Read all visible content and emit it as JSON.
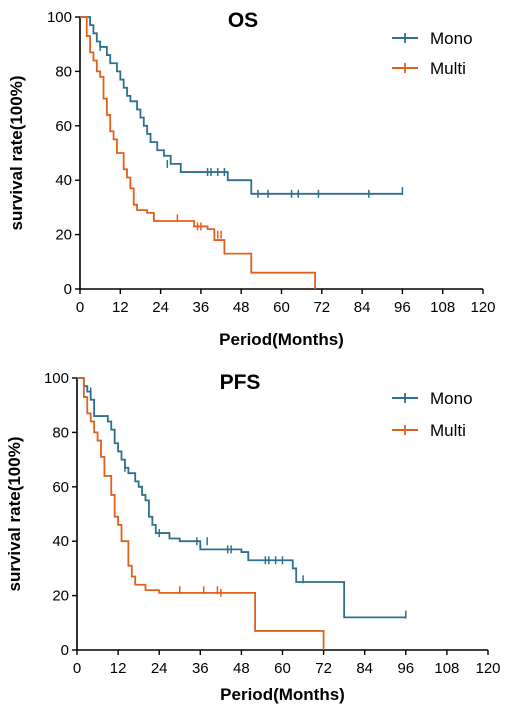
{
  "chart_data": [
    {
      "type": "line",
      "title": "OS",
      "xlabel": "Period(Months)",
      "ylabel": "survival rate(100%)",
      "xlim": [
        0,
        120
      ],
      "ylim": [
        0,
        100
      ],
      "xticks": [
        0,
        12,
        24,
        36,
        48,
        60,
        72,
        84,
        96,
        108,
        120
      ],
      "yticks": [
        0,
        20,
        40,
        60,
        80,
        100
      ],
      "x_tick_labels": [
        "0",
        "12",
        "24",
        "36",
        "48",
        "60",
        "72",
        "84",
        "96",
        "108",
        "120"
      ],
      "y_tick_labels": [
        "0",
        "20",
        "40",
        "60",
        "80",
        "100"
      ],
      "grid": false,
      "legend": "top-right",
      "series": [
        {
          "name": "Mono",
          "color": "#2e6e8e",
          "steps": [
            [
              0,
              100
            ],
            [
              3,
              97
            ],
            [
              4,
              94
            ],
            [
              5,
              91
            ],
            [
              6,
              89
            ],
            [
              8,
              86
            ],
            [
              9,
              83
            ],
            [
              11,
              80
            ],
            [
              12,
              77
            ],
            [
              13,
              74
            ],
            [
              14,
              71
            ],
            [
              15,
              69
            ],
            [
              17,
              66
            ],
            [
              18,
              63
            ],
            [
              19,
              60
            ],
            [
              20,
              57
            ],
            [
              21,
              54
            ],
            [
              23,
              51
            ],
            [
              25,
              49
            ],
            [
              27,
              46
            ],
            [
              30,
              43
            ],
            [
              44,
              40
            ],
            [
              51,
              35
            ],
            [
              96,
              35
            ]
          ],
          "censored": [
            [
              6,
              89
            ],
            [
              26,
              46
            ],
            [
              38,
              43
            ],
            [
              39,
              43
            ],
            [
              41,
              43
            ],
            [
              43,
              43
            ],
            [
              53,
              35
            ],
            [
              56,
              35
            ],
            [
              63,
              35
            ],
            [
              65,
              35
            ],
            [
              71,
              35
            ],
            [
              86,
              35
            ],
            [
              96,
              36
            ]
          ]
        },
        {
          "name": "Multi",
          "color": "#e0601e",
          "steps": [
            [
              0,
              100
            ],
            [
              2,
              93
            ],
            [
              3,
              87
            ],
            [
              4,
              84
            ],
            [
              5,
              80
            ],
            [
              6,
              78
            ],
            [
              7,
              70
            ],
            [
              8,
              64
            ],
            [
              9,
              58
            ],
            [
              10,
              55
            ],
            [
              11,
              50
            ],
            [
              13,
              44
            ],
            [
              14,
              41
            ],
            [
              15,
              37
            ],
            [
              16,
              31
            ],
            [
              17,
              29
            ],
            [
              20,
              28
            ],
            [
              22,
              25
            ],
            [
              34,
              23
            ],
            [
              38,
              22
            ],
            [
              40,
              18
            ],
            [
              43,
              13
            ],
            [
              51,
              6
            ],
            [
              70,
              0
            ]
          ],
          "censored": [
            [
              29,
              26
            ],
            [
              35,
              23
            ],
            [
              36,
              23
            ],
            [
              40,
              20
            ],
            [
              41,
              20
            ],
            [
              42,
              20
            ]
          ]
        }
      ]
    },
    {
      "type": "line",
      "title": "PFS",
      "xlabel": "Period(Months)",
      "ylabel": "survival rate(100%)",
      "xlim": [
        0,
        120
      ],
      "ylim": [
        0,
        100
      ],
      "xticks": [
        0,
        12,
        24,
        36,
        48,
        60,
        72,
        84,
        96,
        108,
        120
      ],
      "yticks": [
        0,
        20,
        40,
        60,
        80,
        100
      ],
      "x_tick_labels": [
        "0",
        "12",
        "24",
        "36",
        "48",
        "60",
        "72",
        "84",
        "96",
        "108",
        "120"
      ],
      "y_tick_labels": [
        "0",
        "20",
        "40",
        "60",
        "80",
        "100"
      ],
      "grid": false,
      "legend": "top-right",
      "series": [
        {
          "name": "Mono",
          "color": "#2e6e8e",
          "steps": [
            [
              0,
              100
            ],
            [
              2,
              97
            ],
            [
              3,
              95
            ],
            [
              4,
              92
            ],
            [
              5,
              86
            ],
            [
              9,
              84
            ],
            [
              10,
              81
            ],
            [
              11,
              76
            ],
            [
              12,
              73
            ],
            [
              13,
              70
            ],
            [
              14,
              67
            ],
            [
              15,
              65
            ],
            [
              17,
              62
            ],
            [
              18,
              60
            ],
            [
              19,
              57
            ],
            [
              20,
              55
            ],
            [
              21,
              49
            ],
            [
              22,
              46
            ],
            [
              23,
              43
            ],
            [
              27,
              41
            ],
            [
              30,
              40
            ],
            [
              36,
              37
            ],
            [
              48,
              36
            ],
            [
              50,
              33
            ],
            [
              63,
              30
            ],
            [
              64,
              25
            ],
            [
              78,
              12
            ],
            [
              96,
              12
            ]
          ],
          "censored": [
            [
              4,
              95
            ],
            [
              14,
              67
            ],
            [
              24,
              43
            ],
            [
              35,
              40
            ],
            [
              38,
              40
            ],
            [
              44,
              37
            ],
            [
              45,
              37
            ],
            [
              55,
              33
            ],
            [
              56,
              33
            ],
            [
              58,
              33
            ],
            [
              60,
              33
            ],
            [
              66,
              26
            ],
            [
              96,
              13
            ]
          ]
        },
        {
          "name": "Multi",
          "color": "#e0601e",
          "steps": [
            [
              0,
              100
            ],
            [
              2,
              93
            ],
            [
              3,
              87
            ],
            [
              4,
              84
            ],
            [
              5,
              80
            ],
            [
              6,
              77
            ],
            [
              7,
              71
            ],
            [
              8,
              64
            ],
            [
              10,
              57
            ],
            [
              11,
              49
            ],
            [
              12,
              46
            ],
            [
              13,
              40
            ],
            [
              15,
              31
            ],
            [
              16,
              27
            ],
            [
              17,
              24
            ],
            [
              20,
              22
            ],
            [
              24,
              21
            ],
            [
              50,
              21
            ],
            [
              52,
              7
            ],
            [
              72,
              0
            ]
          ],
          "censored": [
            [
              30,
              22
            ],
            [
              37,
              22
            ],
            [
              41,
              22
            ],
            [
              42,
              21
            ]
          ]
        }
      ]
    }
  ]
}
